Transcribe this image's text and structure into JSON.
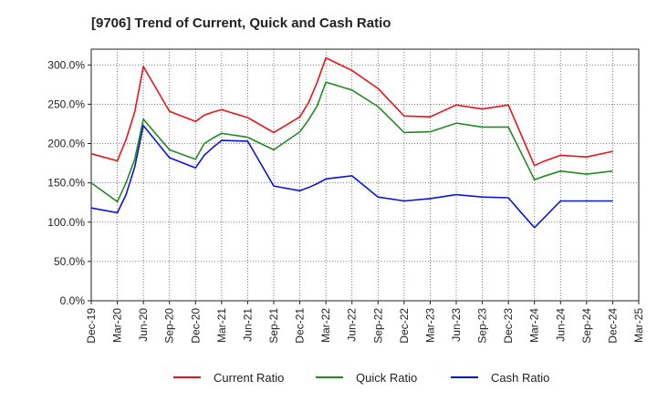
{
  "chart_data": {
    "type": "line",
    "title": "[9706]  Trend of Current, Quick and Cash Ratio",
    "xlabel": "",
    "ylabel": "",
    "ylim": [
      0,
      320
    ],
    "yticks": [
      0,
      50,
      100,
      150,
      200,
      250,
      300
    ],
    "ytick_labels": [
      "0.0%",
      "50.0%",
      "100.0%",
      "150.0%",
      "200.0%",
      "250.0%",
      "300.0%"
    ],
    "xlim": [
      0,
      63
    ],
    "xticks": [
      0,
      3,
      6,
      9,
      12,
      15,
      18,
      21,
      24,
      27,
      30,
      33,
      36,
      39,
      42,
      45,
      48,
      51,
      54,
      57,
      60,
      63
    ],
    "xtick_labels": [
      "Dec-19",
      "Mar-20",
      "Jun-20",
      "Sep-20",
      "Dec-20",
      "Mar-21",
      "Jun-21",
      "Sep-21",
      "Dec-21",
      "Mar-22",
      "Jun-22",
      "Sep-22",
      "Dec-22",
      "Mar-23",
      "Jun-23",
      "Sep-23",
      "Dec-23",
      "Mar-24",
      "Jun-24",
      "Sep-24",
      "Dec-24",
      "Mar-25"
    ],
    "grid": true,
    "legend_position": "bottom",
    "series": [
      {
        "name": "Current Ratio",
        "color": "#e8141c",
        "x": [
          0,
          3,
          4,
          5,
          6,
          9,
          12,
          13,
          14,
          15,
          18,
          21,
          24,
          25,
          26,
          27,
          30,
          33,
          36,
          39,
          42,
          45,
          48,
          51,
          52,
          54,
          57,
          60
        ],
        "y": [
          187,
          178,
          205,
          240,
          298,
          241,
          228,
          236,
          240,
          243,
          233,
          214,
          234,
          252,
          278,
          309,
          293,
          270,
          235,
          234,
          249,
          244,
          249,
          172,
          177,
          185,
          183,
          190
        ]
      },
      {
        "name": "Quick Ratio",
        "color": "#228b22",
        "x": [
          0,
          3,
          4,
          5,
          6,
          9,
          12,
          13,
          14,
          15,
          18,
          21,
          24,
          25,
          26,
          27,
          30,
          33,
          36,
          39,
          42,
          45,
          48,
          51,
          52,
          54,
          57,
          60
        ],
        "y": [
          150,
          126,
          150,
          180,
          231,
          192,
          180,
          200,
          207,
          213,
          208,
          192,
          215,
          230,
          248,
          278,
          268,
          247,
          214,
          215,
          226,
          221,
          221,
          154,
          158,
          165,
          161,
          165
        ]
      },
      {
        "name": "Cash Ratio",
        "color": "#0a14dc",
        "x": [
          0,
          3,
          4,
          5,
          6,
          9,
          12,
          13,
          14,
          15,
          18,
          21,
          24,
          25,
          26,
          27,
          30,
          33,
          36,
          39,
          42,
          45,
          48,
          49,
          51,
          54,
          57,
          60
        ],
        "y": [
          118,
          112,
          135,
          170,
          223,
          182,
          169,
          185,
          195,
          204,
          203,
          146,
          140,
          144,
          149,
          155,
          159,
          132,
          127,
          130,
          135,
          132,
          131,
          118,
          93,
          127,
          127,
          127
        ]
      }
    ]
  }
}
